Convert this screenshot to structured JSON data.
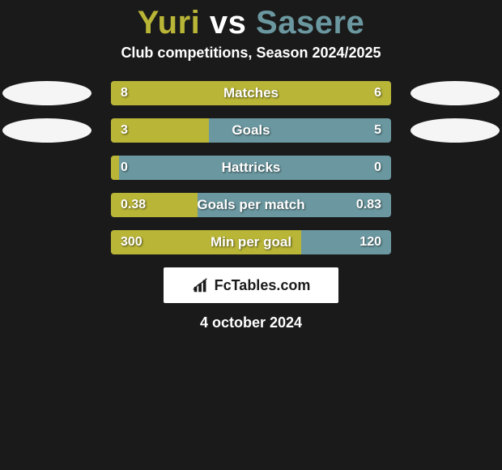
{
  "title": {
    "player1": "Yuri",
    "vs": "vs",
    "player2": "Sasere",
    "player1_color": "#b9b537",
    "vs_color": "#ffffff",
    "player2_color": "#6b98a0"
  },
  "subtitle": "Club competitions, Season 2024/2025",
  "flag_colors": {
    "left": "#f5f5f5",
    "right": "#f5f5f5"
  },
  "bars": {
    "bg_color": "#6b98a0",
    "fill_color": "#b9b537",
    "items": [
      {
        "label": "Matches",
        "left": "8",
        "right": "6",
        "fill_pct": 100,
        "show_flags": true
      },
      {
        "label": "Goals",
        "left": "3",
        "right": "5",
        "fill_pct": 35,
        "show_flags": true
      },
      {
        "label": "Hattricks",
        "left": "0",
        "right": "0",
        "fill_pct": 3,
        "show_flags": false
      },
      {
        "label": "Goals per match",
        "left": "0.38",
        "right": "0.83",
        "fill_pct": 31,
        "show_flags": false
      },
      {
        "label": "Min per goal",
        "left": "300",
        "right": "120",
        "fill_pct": 68,
        "show_flags": false
      }
    ]
  },
  "logo": {
    "text": "FcTables.com",
    "icon_color": "#1a1a1a"
  },
  "date": "4 october 2024"
}
